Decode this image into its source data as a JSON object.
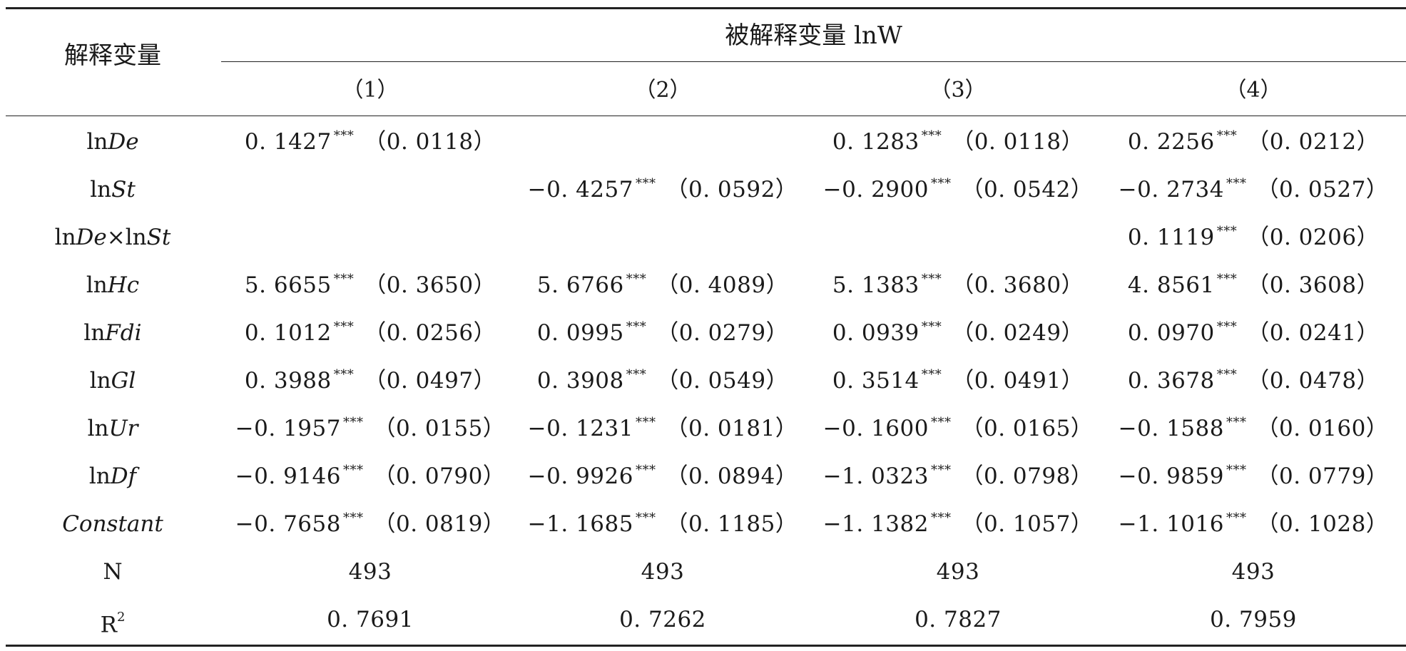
{
  "header": {
    "explanatory_label": "解释变量",
    "dependent_label": "被解释变量 lnW",
    "columns": [
      "（1）",
      "（2）",
      "（3）",
      "（4）"
    ]
  },
  "stars": "***",
  "rows": [
    {
      "var": "lnDe",
      "cells": [
        {
          "coef": "0. 1427",
          "se": "（0. 0118）"
        },
        null,
        {
          "coef": "0. 1283",
          "se": "（0. 0118）"
        },
        {
          "coef": "0. 2256",
          "se": "（0. 0212）"
        }
      ]
    },
    {
      "var": "lnSt",
      "cells": [
        null,
        {
          "coef": "−0. 4257",
          "se": "（0. 0592）"
        },
        {
          "coef": "−0. 2900",
          "se": "（0. 0542）"
        },
        {
          "coef": "−0. 2734",
          "se": "（0. 0527）"
        }
      ]
    },
    {
      "var": "lnDe×lnSt",
      "cells": [
        null,
        null,
        null,
        {
          "coef": "0. 1119",
          "se": "（0. 0206）"
        }
      ]
    },
    {
      "var": "lnHc",
      "cells": [
        {
          "coef": "5. 6655",
          "se": "（0. 3650）"
        },
        {
          "coef": "5. 6766",
          "se": "（0. 4089）"
        },
        {
          "coef": "5. 1383",
          "se": "（0. 3680）"
        },
        {
          "coef": "4. 8561",
          "se": "（0. 3608）"
        }
      ]
    },
    {
      "var": "lnFdi",
      "cells": [
        {
          "coef": "0. 1012",
          "se": "（0. 0256）"
        },
        {
          "coef": "0. 0995",
          "se": "（0. 0279）"
        },
        {
          "coef": "0. 0939",
          "se": "（0. 0249）"
        },
        {
          "coef": "0. 0970",
          "se": "（0. 0241）"
        }
      ]
    },
    {
      "var": "lnGl",
      "cells": [
        {
          "coef": "0. 3988",
          "se": "（0. 0497）"
        },
        {
          "coef": "0. 3908",
          "se": "（0. 0549）"
        },
        {
          "coef": "0. 3514",
          "se": "（0. 0491）"
        },
        {
          "coef": "0. 3678",
          "se": "（0. 0478）"
        }
      ]
    },
    {
      "var": "lnUr",
      "cells": [
        {
          "coef": "−0. 1957",
          "se": "（0. 0155）"
        },
        {
          "coef": "−0. 1231",
          "se": "（0. 0181）"
        },
        {
          "coef": "−0. 1600",
          "se": "（0. 0165）"
        },
        {
          "coef": "−0. 1588",
          "se": "（0. 0160）"
        }
      ]
    },
    {
      "var": "lnDf",
      "cells": [
        {
          "coef": "−0. 9146",
          "se": "（0. 0790）"
        },
        {
          "coef": "−0. 9926",
          "se": "（0. 0894）"
        },
        {
          "coef": "−1. 0323",
          "se": "（0. 0798）"
        },
        {
          "coef": "−0. 9859",
          "se": "（0. 0779）"
        }
      ]
    },
    {
      "var": "Constant",
      "cells": [
        {
          "coef": "−0. 7658",
          "se": "（0. 0819）"
        },
        {
          "coef": "−1. 1685",
          "se": "（0. 1185）"
        },
        {
          "coef": "−1. 1382",
          "se": "（0. 1057）"
        },
        {
          "coef": "−1. 1016",
          "se": "（0. 1028）"
        }
      ]
    }
  ],
  "n_row": {
    "label": "N",
    "values": [
      "493",
      "493",
      "493",
      "493"
    ]
  },
  "r2_row": {
    "label": "R",
    "label_sup": "2",
    "values": [
      "0. 7691",
      "0. 7262",
      "0. 7827",
      "0. 7959"
    ]
  }
}
